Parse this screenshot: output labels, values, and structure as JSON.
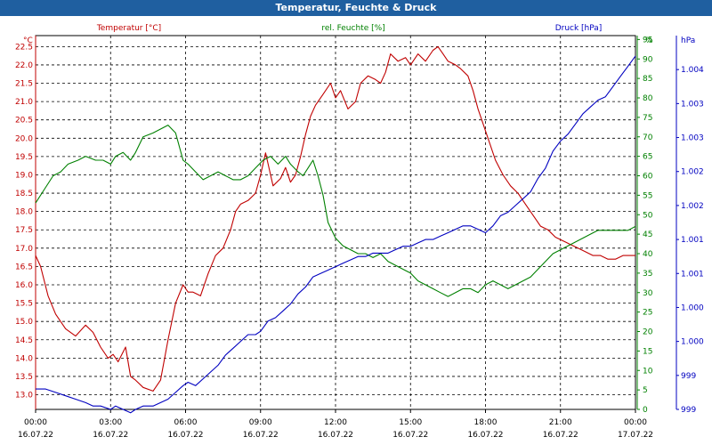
{
  "chart_data": {
    "type": "line",
    "title": "Temperatur, Feuchte & Druck",
    "xlim": [
      "16.07.22 00:00",
      "17.07.22 00:00"
    ],
    "x_ticks": [
      {
        "time": "00:00",
        "date": "16.07.22"
      },
      {
        "time": "03:00",
        "date": "16.07.22"
      },
      {
        "time": "06:00",
        "date": "16.07.22"
      },
      {
        "time": "09:00",
        "date": "16.07.22"
      },
      {
        "time": "12:00",
        "date": "16.07.22"
      },
      {
        "time": "15:00",
        "date": "16.07.22"
      },
      {
        "time": "18:00",
        "date": "16.07.22"
      },
      {
        "time": "21:00",
        "date": "16.07.22"
      },
      {
        "time": "00:00",
        "date": "17.07.22"
      }
    ],
    "axes": {
      "left": {
        "label": "Temperatur [°C]",
        "unit": "°C",
        "ylim": [
          12.6,
          22.8
        ],
        "ticks": [
          "13.0",
          "13.5",
          "14.0",
          "14.5",
          "15.0",
          "15.5",
          "16.0",
          "16.5",
          "17.0",
          "17.5",
          "18.0",
          "18.5",
          "19.0",
          "19.5",
          "20.0",
          "20.5",
          "21.0",
          "21.5",
          "22.0",
          "22.5"
        ]
      },
      "right1": {
        "label": "rel. Feuchte [%]",
        "unit": "%",
        "ylim": [
          0,
          96
        ],
        "ticks": [
          "0",
          "5",
          "10",
          "15",
          "20",
          "25",
          "30",
          "35",
          "40",
          "45",
          "50",
          "55",
          "60",
          "65",
          "70",
          "75",
          "80",
          "85",
          "90",
          "95"
        ]
      },
      "right2": {
        "label": "Druck [hPa]",
        "unit": "hPa",
        "ylim": [
          999.0,
          1004.5
        ],
        "ticks": [
          "999",
          "999",
          "1.000",
          "1.000",
          "1.001",
          "1.001",
          "1.002",
          "1.002",
          "1.003",
          "1.003",
          "1.004"
        ]
      }
    },
    "grid": true,
    "series": [
      {
        "name": "Temperatur [°C]",
        "axis": "left",
        "color": "#c00000",
        "x_hours": [
          0,
          0.2,
          0.5,
          0.8,
          1.2,
          1.6,
          2.0,
          2.3,
          2.6,
          2.9,
          3.1,
          3.3,
          3.6,
          3.8,
          4.0,
          4.3,
          4.7,
          5.0,
          5.3,
          5.6,
          5.9,
          6.1,
          6.3,
          6.6,
          6.9,
          7.2,
          7.5,
          7.8,
          8.0,
          8.2,
          8.5,
          8.8,
          9.0,
          9.2,
          9.5,
          9.8,
          10.0,
          10.2,
          10.4,
          10.6,
          10.8,
          11.0,
          11.2,
          11.5,
          11.8,
          12.0,
          12.2,
          12.5,
          12.8,
          13.0,
          13.3,
          13.6,
          13.8,
          14.0,
          14.2,
          14.5,
          14.8,
          15.0,
          15.3,
          15.6,
          15.9,
          16.1,
          16.3,
          16.5,
          16.8,
          17.0,
          17.3,
          17.5,
          17.7,
          17.9,
          18.1,
          18.4,
          18.7,
          19.0,
          19.3,
          19.6,
          19.9,
          20.2,
          20.5,
          20.8,
          21.1,
          21.4,
          21.7,
          22.0,
          22.3,
          22.6,
          22.9,
          23.2,
          23.5,
          23.8,
          24.0
        ],
        "values": [
          16.8,
          16.5,
          15.7,
          15.2,
          14.8,
          14.6,
          14.9,
          14.7,
          14.3,
          14.0,
          14.1,
          13.9,
          14.3,
          13.5,
          13.4,
          13.2,
          13.1,
          13.4,
          14.5,
          15.5,
          16.0,
          15.8,
          15.8,
          15.7,
          16.3,
          16.8,
          17.0,
          17.5,
          18.0,
          18.2,
          18.3,
          18.5,
          19.0,
          19.6,
          18.7,
          18.9,
          19.2,
          18.8,
          19.0,
          19.5,
          20.1,
          20.6,
          20.9,
          21.2,
          21.5,
          21.1,
          21.3,
          20.8,
          21.0,
          21.5,
          21.7,
          21.6,
          21.5,
          21.8,
          22.3,
          22.1,
          22.2,
          22.0,
          22.3,
          22.1,
          22.4,
          22.5,
          22.3,
          22.1,
          22.0,
          21.9,
          21.7,
          21.3,
          20.8,
          20.4,
          20.0,
          19.4,
          19.0,
          18.7,
          18.5,
          18.2,
          17.9,
          17.6,
          17.5,
          17.3,
          17.2,
          17.1,
          17.0,
          16.9,
          16.8,
          16.8,
          16.7,
          16.7,
          16.8,
          16.8,
          16.8
        ]
      },
      {
        "name": "rel. Feuchte [%]",
        "axis": "right1",
        "color": "#008000",
        "x_hours": [
          0,
          0.3,
          0.7,
          1.0,
          1.3,
          1.7,
          2.0,
          2.4,
          2.7,
          3.0,
          3.2,
          3.5,
          3.8,
          4.0,
          4.3,
          4.7,
          5.0,
          5.3,
          5.6,
          5.9,
          6.1,
          6.4,
          6.7,
          7.0,
          7.3,
          7.6,
          7.9,
          8.2,
          8.5,
          8.8,
          9.1,
          9.4,
          9.7,
          10.0,
          10.2,
          10.5,
          10.7,
          10.9,
          11.1,
          11.3,
          11.5,
          11.7,
          12.0,
          12.3,
          12.6,
          12.9,
          13.2,
          13.5,
          13.8,
          14.1,
          14.4,
          14.7,
          15.0,
          15.3,
          15.6,
          15.9,
          16.2,
          16.5,
          16.8,
          17.1,
          17.4,
          17.7,
          18.0,
          18.3,
          18.6,
          18.9,
          19.2,
          19.5,
          19.8,
          20.1,
          20.4,
          20.7,
          21.0,
          21.3,
          21.6,
          21.9,
          22.2,
          22.5,
          22.8,
          23.1,
          23.4,
          23.7,
          24.0
        ],
        "values": [
          53,
          56,
          60,
          61,
          63,
          64,
          65,
          64,
          64,
          63,
          65,
          66,
          64,
          66,
          70,
          71,
          72,
          73,
          71,
          64,
          63,
          61,
          59,
          60,
          61,
          60,
          59,
          59,
          60,
          62,
          64,
          65,
          63,
          65,
          63,
          61,
          60,
          62,
          64,
          60,
          55,
          48,
          44,
          42,
          41,
          40,
          40,
          39,
          40,
          38,
          37,
          36,
          35,
          33,
          32,
          31,
          30,
          29,
          30,
          31,
          31,
          30,
          32,
          33,
          32,
          31,
          32,
          33,
          34,
          36,
          38,
          40,
          41,
          42,
          43,
          44,
          45,
          46,
          46,
          46,
          46,
          46,
          47
        ]
      },
      {
        "name": "Druck [hPa]",
        "axis": "right2",
        "color": "#0000c0",
        "x_hours": [
          0,
          0.4,
          0.8,
          1.2,
          1.6,
          2.0,
          2.3,
          2.6,
          3.0,
          3.2,
          3.5,
          3.8,
          4.0,
          4.3,
          4.7,
          5.0,
          5.3,
          5.6,
          5.9,
          6.1,
          6.4,
          6.7,
          7.0,
          7.3,
          7.6,
          7.9,
          8.2,
          8.5,
          8.8,
          9.0,
          9.3,
          9.6,
          9.9,
          10.2,
          10.5,
          10.8,
          11.1,
          11.4,
          11.7,
          12.0,
          12.3,
          12.6,
          12.9,
          13.2,
          13.5,
          13.8,
          14.1,
          14.4,
          14.7,
          15.0,
          15.3,
          15.6,
          15.9,
          16.2,
          16.5,
          16.8,
          17.1,
          17.4,
          17.7,
          18.0,
          18.3,
          18.6,
          18.9,
          19.2,
          19.5,
          19.8,
          20.1,
          20.4,
          20.7,
          21.0,
          21.3,
          21.6,
          21.9,
          22.2,
          22.5,
          22.8,
          23.1,
          23.4,
          23.7,
          24.0
        ],
        "values": [
          999.3,
          999.3,
          999.25,
          999.2,
          999.15,
          999.1,
          999.05,
          999.05,
          999.0,
          999.05,
          999.0,
          998.95,
          999.0,
          999.05,
          999.05,
          999.1,
          999.15,
          999.25,
          999.35,
          999.4,
          999.35,
          999.45,
          999.55,
          999.65,
          999.8,
          999.9,
          1000.0,
          1000.1,
          1000.1,
          1000.15,
          1000.3,
          1000.35,
          1000.45,
          1000.55,
          1000.7,
          1000.8,
          1000.95,
          1001.0,
          1001.05,
          1001.1,
          1001.15,
          1001.2,
          1001.25,
          1001.25,
          1001.3,
          1001.3,
          1001.3,
          1001.35,
          1001.4,
          1001.4,
          1001.45,
          1001.5,
          1001.5,
          1001.55,
          1001.6,
          1001.65,
          1001.7,
          1001.7,
          1001.65,
          1001.6,
          1001.7,
          1001.85,
          1001.9,
          1002.0,
          1002.1,
          1002.2,
          1002.4,
          1002.55,
          1002.8,
          1002.95,
          1003.05,
          1003.2,
          1003.35,
          1003.45,
          1003.55,
          1003.6,
          1003.75,
          1003.9,
          1004.05,
          1004.2
        ]
      }
    ]
  }
}
